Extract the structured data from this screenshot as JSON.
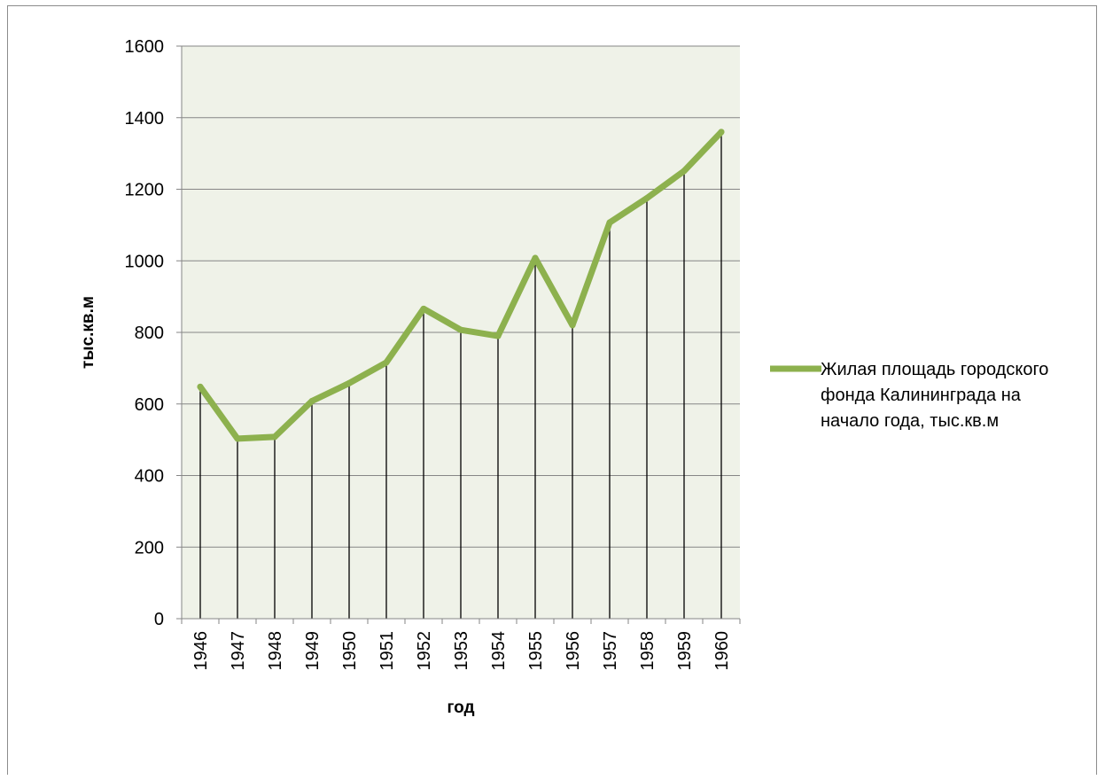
{
  "chart_data": {
    "type": "line",
    "xlabel": "год",
    "ylabel": "тыс.кв.м",
    "ylim": [
      0,
      1600
    ],
    "y_ticks": [
      "0",
      "200",
      "400",
      "600",
      "800",
      "1000",
      "1200",
      "1400",
      "1600"
    ],
    "categories": [
      "1946",
      "1947",
      "1948",
      "1949",
      "1950",
      "1951",
      "1952",
      "1953",
      "1954",
      "1955",
      "1956",
      "1957",
      "1958",
      "1959",
      "1960"
    ],
    "series": [
      {
        "name": "Жилая площадь городского фонда Калининграда на начало года, тыс.кв.м",
        "values": [
          648,
          503,
          508,
          608,
          658,
          716,
          866,
          807,
          790,
          1008,
          820,
          1107,
          1175,
          1251,
          1360
        ],
        "color": "#8db14e"
      }
    ],
    "legend": {
      "position": "right",
      "lines": [
        "Жилая площадь городского",
        "фонда Калининграда на",
        "начало года, тыс.кв.м"
      ]
    },
    "grid": true,
    "drop_lines": true,
    "plot_background": "#eff2e8"
  }
}
